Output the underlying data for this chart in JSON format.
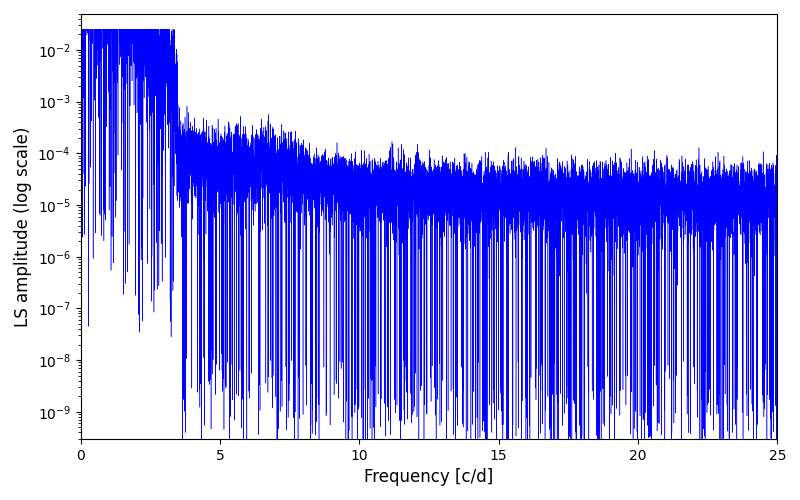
{
  "xlabel": "Frequency [c/d]",
  "ylabel": "LS amplitude (log scale)",
  "xlim": [
    0,
    25
  ],
  "ylim": [
    3e-10,
    0.05
  ],
  "xticks": [
    0,
    5,
    10,
    15,
    20,
    25
  ],
  "line_color": "#0000ff",
  "background_color": "#ffffff",
  "freq_max": 25.0,
  "n_points": 12000,
  "seed": 137
}
